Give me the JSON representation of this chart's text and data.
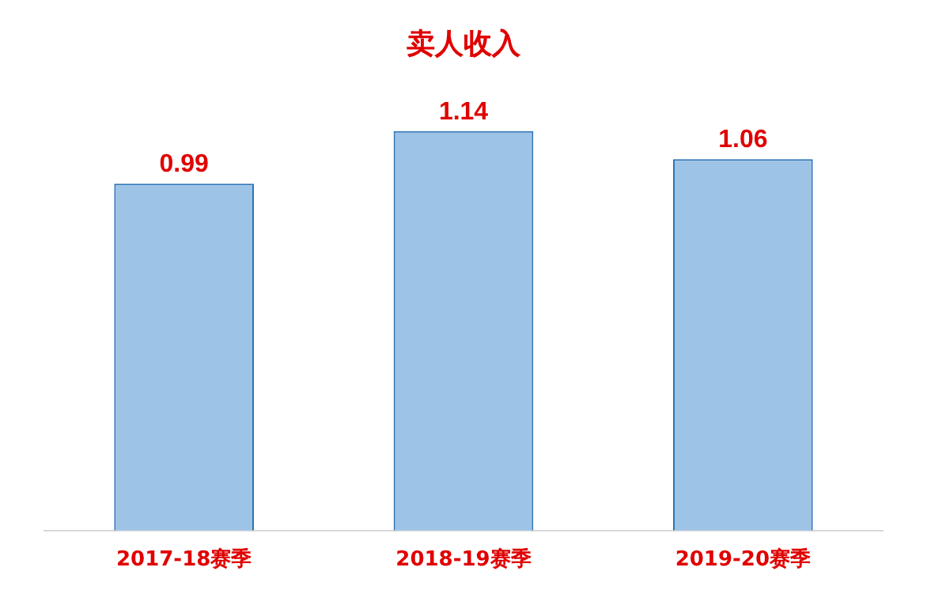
{
  "chart_data": {
    "type": "bar",
    "title": "卖人收入",
    "categories": [
      "2017-18赛季",
      "2018-19赛季",
      "2019-20赛季"
    ],
    "values": [
      0.99,
      1.14,
      1.06
    ],
    "color": "#9dc3e6",
    "data_labels": true
  }
}
